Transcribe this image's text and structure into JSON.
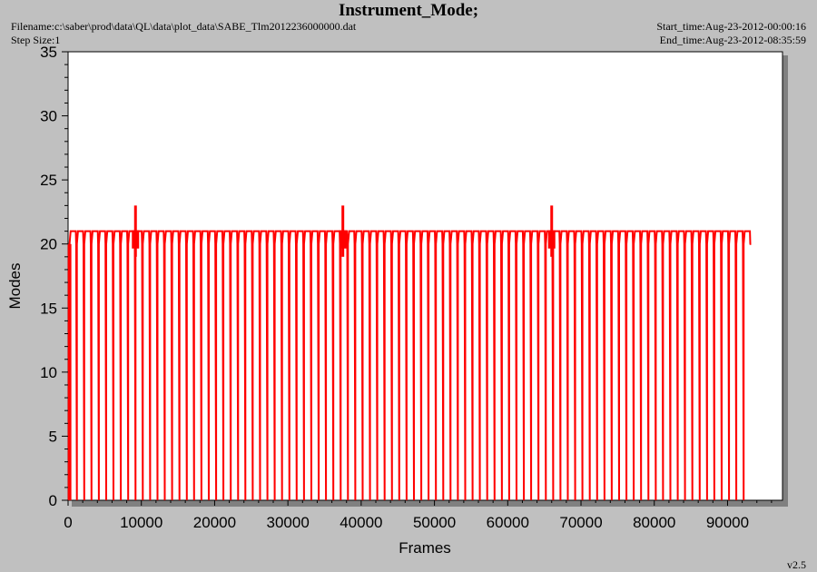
{
  "header": {
    "title": "Instrument_Mode;",
    "filename": "Filename:c:\\saber\\prod\\data\\QL\\data\\plot_data\\SABE_Tlm2012236000000.dat",
    "step_size": "Step Size:1",
    "start_time": "Start_time:Aug-23-2012-00:00:16",
    "end_time": "End_time:Aug-23-2012-08:35:59",
    "version": "v2.5"
  },
  "colors": {
    "series": "#ff0000",
    "plot_bg": "#ffffff",
    "page_bg": "#c0c0c0",
    "shadow": "#808080"
  },
  "chart_data": {
    "type": "line",
    "title": "Instrument_Mode;",
    "xlabel": "Frames",
    "ylabel": "Modes",
    "xlim": [
      0,
      97500
    ],
    "ylim": [
      0,
      35
    ],
    "xticks": [
      0,
      10000,
      20000,
      30000,
      40000,
      50000,
      60000,
      70000,
      80000,
      90000
    ],
    "yticks": [
      0,
      5,
      10,
      15,
      20,
      25,
      30,
      35
    ],
    "grid": false,
    "series": [
      {
        "base_mode": 20,
        "high_mode": 21,
        "low_mode": 0,
        "peak_mode": 23,
        "drop_interval_frames": 1000,
        "data_range": [
          0,
          93000
        ],
        "peaks_at_frames": [
          9200,
          37500,
          66000
        ]
      }
    ]
  }
}
